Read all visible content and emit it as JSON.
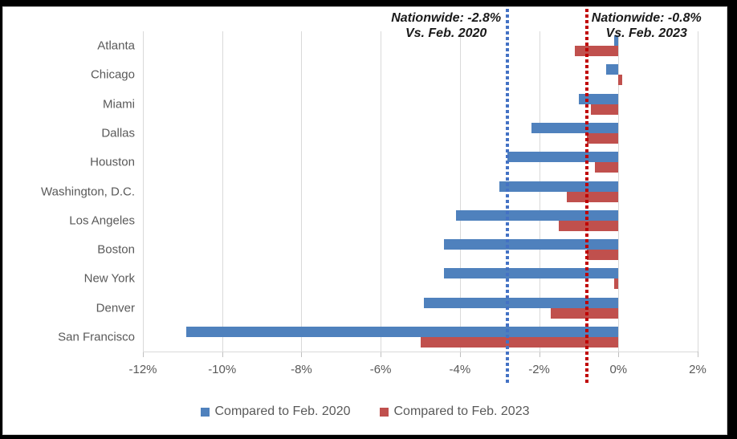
{
  "chart_data": {
    "type": "bar",
    "orientation": "horizontal",
    "categories": [
      "Atlanta",
      "Chicago",
      "Miami",
      "Dallas",
      "Houston",
      "Washington, D.C.",
      "Los Angeles",
      "Boston",
      "New York",
      "Denver",
      "San Francisco"
    ],
    "series": [
      {
        "name": "Compared to Feb. 2020",
        "color": "#4F81BD",
        "values": [
          -0.1,
          -0.3,
          -1.0,
          -2.2,
          -2.8,
          -3.0,
          -4.1,
          -4.4,
          -4.4,
          -4.9,
          -10.9
        ]
      },
      {
        "name": "Compared to Feb. 2023",
        "color": "#C0504D",
        "values": [
          -1.1,
          0.1,
          -0.7,
          -0.8,
          -0.6,
          -1.3,
          -1.5,
          -0.8,
          -0.1,
          -1.7,
          -5.0
        ]
      }
    ],
    "xlim": [
      -12,
      2
    ],
    "xticks": [
      {
        "label": "-12%",
        "value": -12
      },
      {
        "label": "-10%",
        "value": -10
      },
      {
        "label": "-8%",
        "value": -8
      },
      {
        "label": "-6%",
        "value": -6
      },
      {
        "label": "-4%",
        "value": -4
      },
      {
        "label": "-2%",
        "value": -2
      },
      {
        "label": "0%",
        "value": 0
      },
      {
        "label": "2%",
        "value": 2
      }
    ],
    "grid": "vertical",
    "legend_position": "bottom",
    "annotations": [
      {
        "lines": [
          "Nationwide: -2.8%",
          "Vs. Feb. 2020"
        ],
        "value": -2.8,
        "line_color": "#4472C4",
        "side": "left"
      },
      {
        "lines": [
          "Nationwide: -0.8%",
          "Vs. Feb. 2023"
        ],
        "value": -0.8,
        "line_color": "#C00000",
        "side": "right"
      }
    ],
    "colors": {
      "gridline": "#d9d9d9",
      "tick": "#bfbfbf",
      "label_text": "#595959",
      "annotation_text": "#1a1a1a"
    }
  }
}
